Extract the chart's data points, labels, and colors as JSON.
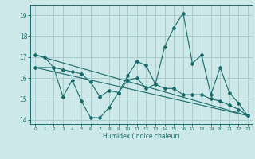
{
  "xlabel": "Humidex (Indice chaleur)",
  "bg_color": "#cce8e8",
  "grid_color": "#aacccc",
  "line_color": "#1a6b6b",
  "xlim": [
    -0.5,
    23.5
  ],
  "ylim": [
    13.8,
    19.5
  ],
  "xticks": [
    0,
    1,
    2,
    3,
    4,
    5,
    6,
    7,
    8,
    9,
    10,
    11,
    12,
    13,
    14,
    15,
    16,
    17,
    18,
    19,
    20,
    21,
    22,
    23
  ],
  "yticks": [
    14,
    15,
    16,
    17,
    18,
    19
  ],
  "series1_x": [
    0,
    1,
    2,
    3,
    4,
    5,
    6,
    7,
    8,
    9,
    10,
    11,
    12,
    13,
    14,
    15,
    16,
    17,
    18,
    19,
    20,
    21,
    22,
    23
  ],
  "series1_y": [
    17.1,
    17.0,
    16.5,
    15.1,
    15.9,
    14.9,
    14.1,
    14.1,
    14.6,
    15.3,
    16.1,
    16.8,
    16.6,
    15.7,
    17.5,
    18.4,
    19.1,
    16.7,
    17.1,
    15.2,
    16.5,
    15.3,
    14.8,
    14.2
  ],
  "series2_x": [
    0,
    2,
    3,
    4,
    5,
    6,
    7,
    8,
    9,
    10,
    11,
    12,
    13,
    14,
    15,
    16,
    17,
    18,
    19,
    20,
    21,
    22,
    23
  ],
  "series2_y": [
    16.5,
    16.5,
    16.4,
    16.3,
    16.2,
    15.8,
    15.1,
    15.4,
    15.3,
    15.9,
    16.0,
    15.5,
    15.7,
    15.5,
    15.5,
    15.2,
    15.2,
    15.2,
    15.0,
    14.9,
    14.7,
    14.5,
    14.2
  ],
  "trend1_x": [
    0,
    23
  ],
  "trend1_y": [
    17.1,
    14.2
  ],
  "trend2_x": [
    0,
    23
  ],
  "trend2_y": [
    16.5,
    14.2
  ]
}
